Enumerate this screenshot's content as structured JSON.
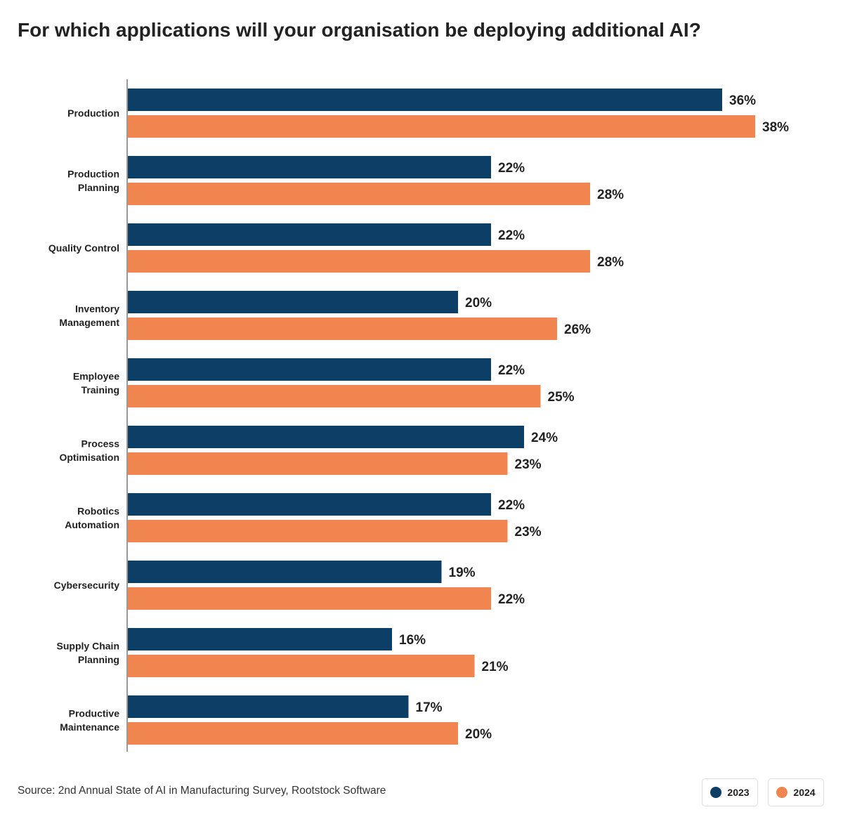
{
  "title": "For which applications will your organisation be deploying additional AI?",
  "source": "Source: 2nd Annual State of AI in Manufacturing Survey, Rootstock Software",
  "chart_data": {
    "type": "bar",
    "orientation": "horizontal",
    "title": "For which applications will your organisation be deploying additional AI?",
    "categories": [
      [
        "Production"
      ],
      [
        "Production",
        "Planning"
      ],
      [
        "Quality Control"
      ],
      [
        "Inventory",
        "Management"
      ],
      [
        "Employee",
        "Training"
      ],
      [
        "Process",
        "Optimisation"
      ],
      [
        "Robotics",
        "Automation"
      ],
      [
        "Cybersecurity"
      ],
      [
        "Supply Chain",
        "Planning"
      ],
      [
        "Productive",
        "Maintenance"
      ]
    ],
    "series": [
      {
        "name": "2023",
        "color": "#0d3f66",
        "values": [
          36,
          22,
          22,
          20,
          22,
          24,
          22,
          19,
          16,
          17
        ]
      },
      {
        "name": "2024",
        "color": "#f0854f",
        "values": [
          38,
          28,
          28,
          26,
          25,
          23,
          23,
          22,
          21,
          20
        ]
      }
    ],
    "value_suffix": "%",
    "xlim": [
      0,
      38
    ],
    "grid": false,
    "legend_placement": "bottom-right"
  }
}
